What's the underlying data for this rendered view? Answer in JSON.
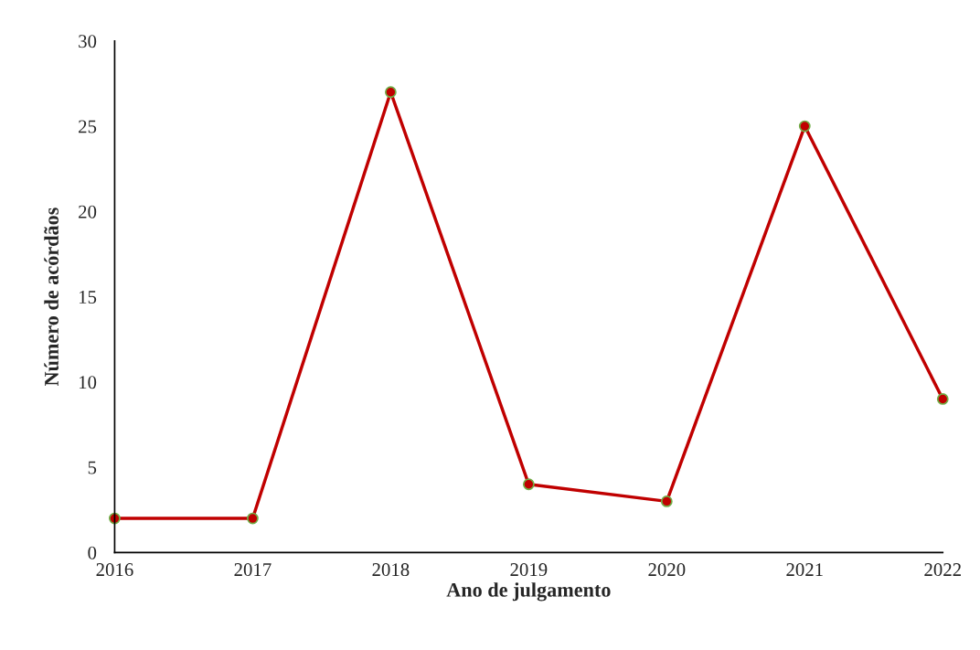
{
  "chart_data": {
    "type": "line",
    "xlabel": "Ano de julgamento",
    "ylabel": "Número de acórdãos",
    "categories": [
      "2016",
      "2017",
      "2018",
      "2019",
      "2020",
      "2021",
      "2022"
    ],
    "series": [
      {
        "color": "#c00000",
        "values": [
          2,
          2,
          27,
          4,
          3,
          25,
          9
        ]
      }
    ],
    "ylim": [
      0,
      30
    ],
    "yticks": [
      0,
      5,
      10,
      15,
      20,
      25,
      30
    ],
    "grid": false,
    "marker": "circle",
    "line_style": "solid"
  }
}
